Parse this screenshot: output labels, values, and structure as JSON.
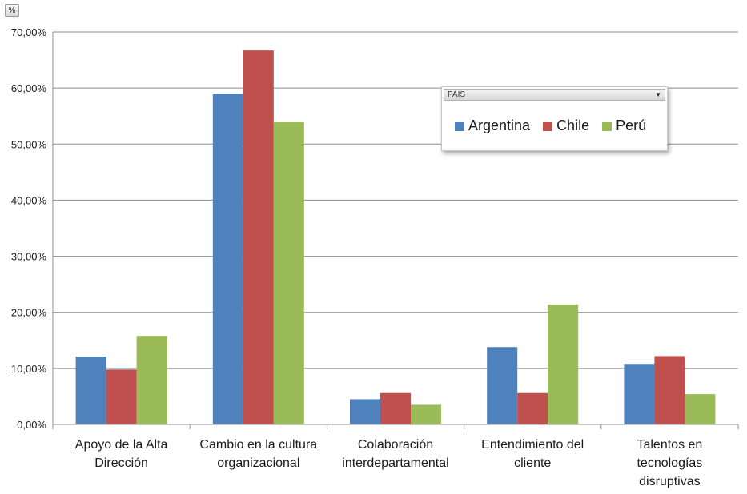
{
  "pivot_button": {
    "label": "%"
  },
  "legend": {
    "field_label": "PAIS",
    "items": [
      {
        "label": "Argentina",
        "color": "#4f81bd"
      },
      {
        "label": "Chile",
        "color": "#c0504d"
      },
      {
        "label": "Perú",
        "color": "#9bbb59"
      }
    ]
  },
  "chart_data": {
    "type": "bar",
    "categories": [
      [
        "Apoyo de la Alta",
        "Dirección"
      ],
      [
        "Cambio en la cultura",
        "organizacional"
      ],
      [
        "Colaboración",
        "interdepartamental"
      ],
      [
        "Entendimiento del",
        "cliente"
      ],
      [
        "Talentos en",
        "tecnologías",
        "disruptivas"
      ]
    ],
    "series": [
      {
        "name": "Argentina",
        "color": "#4f81bd",
        "values": [
          12.1,
          59.0,
          4.5,
          13.8,
          10.8
        ]
      },
      {
        "name": "Chile",
        "color": "#c0504d",
        "values": [
          9.8,
          66.7,
          5.6,
          5.6,
          12.2
        ]
      },
      {
        "name": "Perú",
        "color": "#9bbb59",
        "values": [
          15.8,
          54.0,
          3.5,
          21.4,
          5.4
        ]
      }
    ],
    "ylim": [
      0,
      70
    ],
    "yticks": [
      "0,00%",
      "10,00%",
      "20,00%",
      "30,00%",
      "40,00%",
      "50,00%",
      "60,00%",
      "70,00%"
    ],
    "grid": true,
    "legend_position": "top-right"
  }
}
